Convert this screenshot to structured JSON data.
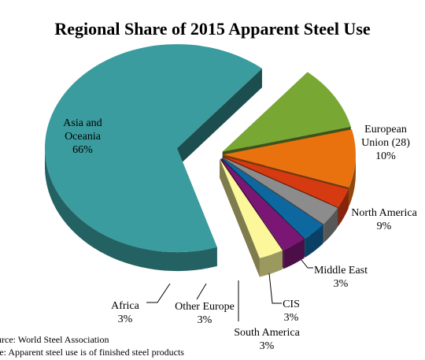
{
  "chart_data": {
    "type": "pie",
    "title": "Regional Share of 2015 Apparent Steel Use",
    "slices": [
      {
        "name": "Asia and Oceania",
        "value": 66,
        "label": "66%",
        "color": "#3a9c9e"
      },
      {
        "name": "European Union (28)",
        "value": 10,
        "label": "10%",
        "color": "#78a733"
      },
      {
        "name": "North America",
        "value": 9,
        "label": "9%",
        "color": "#e9720f"
      },
      {
        "name": "Middle East",
        "value": 3,
        "label": "3%",
        "color": "#d63a11"
      },
      {
        "name": "CIS",
        "value": 3,
        "label": "3%",
        "color": "#8c8c8c"
      },
      {
        "name": "South America",
        "value": 3,
        "label": "3%",
        "color": "#0e68a0"
      },
      {
        "name": "Other Europe",
        "value": 3,
        "label": "3%",
        "color": "#7a1673"
      },
      {
        "name": "Africa",
        "value": 3,
        "label": "3%",
        "color": "#fbf79a"
      }
    ],
    "exploded": true,
    "three_d": true
  },
  "source_note": "urce: World Steel Association",
  "footnote": "te: Apparent steel use is of finished steel products"
}
